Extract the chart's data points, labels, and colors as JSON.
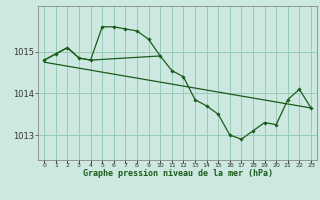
{
  "title": "Graphe pression niveau de la mer (hPa)",
  "bg_color": "#cce8e0",
  "grid_color": "#99ccbb",
  "line_color": "#1a5c1a",
  "marker_color": "#1a5c1a",
  "xlim": [
    -0.5,
    23.5
  ],
  "ylim": [
    1012.4,
    1016.1
  ],
  "yticks": [
    1013,
    1014,
    1015
  ],
  "xticks": [
    0,
    1,
    2,
    3,
    4,
    5,
    6,
    7,
    8,
    9,
    10,
    11,
    12,
    13,
    14,
    15,
    16,
    17,
    18,
    19,
    20,
    21,
    22,
    23
  ],
  "series1_x": [
    0,
    1,
    2,
    3,
    4,
    5,
    6,
    7,
    8,
    9,
    10,
    11,
    12,
    13,
    14,
    15,
    16,
    17,
    18,
    19,
    20,
    21,
    22,
    23
  ],
  "series1_y": [
    1014.8,
    1014.95,
    1015.1,
    1014.85,
    1014.8,
    1015.6,
    1015.6,
    1015.55,
    1015.5,
    1015.3,
    1014.9,
    1014.55,
    1014.4,
    1013.85,
    1013.7,
    1013.5,
    1013.0,
    1012.9,
    1013.1,
    1013.3,
    1013.25,
    1013.85,
    1014.1,
    1013.65
  ],
  "series2_x": [
    0,
    1,
    2,
    3,
    4,
    10
  ],
  "series2_y": [
    1014.8,
    1014.95,
    1015.1,
    1014.85,
    1014.8,
    1014.9
  ],
  "series3_x": [
    0,
    23
  ],
  "series3_y": [
    1014.75,
    1013.65
  ],
  "ylabel_fontsize": 6,
  "xlabel_fontsize": 6,
  "tick_fontsize": 4.5
}
